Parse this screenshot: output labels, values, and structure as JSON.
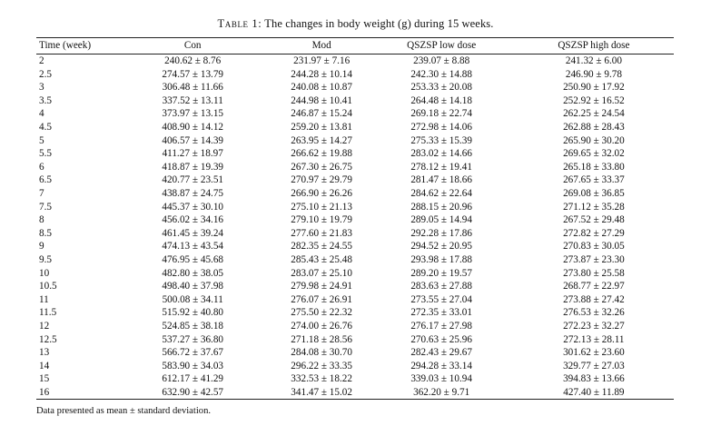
{
  "caption": {
    "label": "Table 1:",
    "text": "The changes in body weight (g) during 15 weeks."
  },
  "table": {
    "headers": [
      "Time (week)",
      "Con",
      "Mod",
      "QSZSP low dose",
      "QSZSP high dose"
    ],
    "rows": [
      [
        "2",
        "240.62 ± 8.76",
        "231.97 ± 7.16",
        "239.07 ± 8.88",
        "241.32 ± 6.00"
      ],
      [
        "2.5",
        "274.57 ± 13.79",
        "244.28 ± 10.14",
        "242.30 ± 14.88",
        "246.90 ± 9.78"
      ],
      [
        "3",
        "306.48 ± 11.66",
        "240.08 ± 10.87",
        "253.33 ± 20.08",
        "250.90 ± 17.92"
      ],
      [
        "3.5",
        "337.52 ± 13.11",
        "244.98 ± 10.41",
        "264.48 ± 14.18",
        "252.92 ± 16.52"
      ],
      [
        "4",
        "373.97 ± 13.15",
        "246.87 ± 15.24",
        "269.18 ± 22.74",
        "262.25 ± 24.54"
      ],
      [
        "4.5",
        "408.90 ± 14.12",
        "259.20 ± 13.81",
        "272.98 ± 14.06",
        "262.88 ± 28.43"
      ],
      [
        "5",
        "406.57 ± 14.39",
        "263.95 ± 14.27",
        "275.33 ± 15.39",
        "265.90 ± 30.20"
      ],
      [
        "5.5",
        "411.27 ± 18.97",
        "266.62 ± 19.88",
        "283.02 ± 14.66",
        "269.65 ± 32.02"
      ],
      [
        "6",
        "418.87 ± 19.39",
        "267.30 ± 26.75",
        "278.12 ± 19.41",
        "265.18 ± 33.80"
      ],
      [
        "6.5",
        "420.77 ± 23.51",
        "270.97 ± 29.79",
        "281.47 ± 18.66",
        "267.65 ± 33.37"
      ],
      [
        "7",
        "438.87 ± 24.75",
        "266.90 ± 26.26",
        "284.62 ± 22.64",
        "269.08 ± 36.85"
      ],
      [
        "7.5",
        "445.37 ± 30.10",
        "275.10 ± 21.13",
        "288.15 ± 20.96",
        "271.12 ± 35.28"
      ],
      [
        "8",
        "456.02 ± 34.16",
        "279.10 ± 19.79",
        "289.05 ± 14.94",
        "267.52 ± 29.48"
      ],
      [
        "8.5",
        "461.45 ± 39.24",
        "277.60 ± 21.83",
        "292.28 ± 17.86",
        "272.82 ± 27.29"
      ],
      [
        "9",
        "474.13 ± 43.54",
        "282.35 ± 24.55",
        "294.52 ± 20.95",
        "270.83 ± 30.05"
      ],
      [
        "9.5",
        "476.95 ± 45.68",
        "285.43 ± 25.48",
        "293.98 ± 17.88",
        "273.87 ± 23.30"
      ],
      [
        "10",
        "482.80 ± 38.05",
        "283.07 ± 25.10",
        "289.20 ± 19.57",
        "273.80 ± 25.58"
      ],
      [
        "10.5",
        "498.40 ± 37.98",
        "279.98 ± 24.91",
        "283.63 ± 27.88",
        "268.77 ± 22.97"
      ],
      [
        "11",
        "500.08 ± 34.11",
        "276.07 ± 26.91",
        "273.55 ± 27.04",
        "273.88 ± 27.42"
      ],
      [
        "11.5",
        "515.92 ± 40.80",
        "275.50 ± 22.32",
        "272.35 ± 33.01",
        "276.53 ± 32.26"
      ],
      [
        "12",
        "524.85 ± 38.18",
        "274.00 ± 26.76",
        "276.17 ± 27.98",
        "272.23 ± 32.27"
      ],
      [
        "12.5",
        "537.27 ± 36.80",
        "271.18 ± 28.56",
        "270.63 ± 25.96",
        "272.13 ± 28.11"
      ],
      [
        "13",
        "566.72 ± 37.67",
        "284.08 ± 30.70",
        "282.43 ± 29.67",
        "301.62 ± 23.60"
      ],
      [
        "14",
        "583.90 ± 34.03",
        "296.22 ± 33.35",
        "294.28 ± 33.14",
        "329.77 ± 27.03"
      ],
      [
        "15",
        "612.17 ± 41.29",
        "332.53 ± 18.22",
        "339.03 ± 10.94",
        "394.83 ± 13.66"
      ],
      [
        "16",
        "632.90 ± 42.57",
        "341.47 ± 15.02",
        "362.20 ± 9.71",
        "427.40 ± 11.89"
      ]
    ]
  },
  "footnote": "Data presented as mean ± standard deviation."
}
